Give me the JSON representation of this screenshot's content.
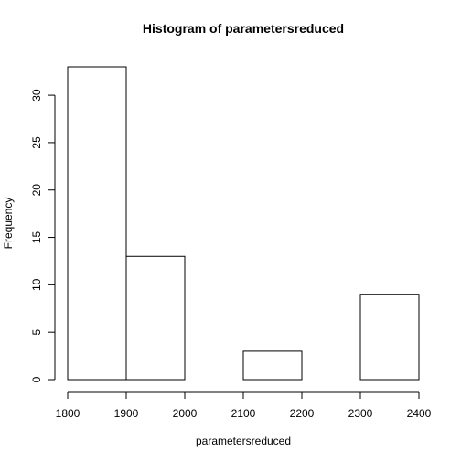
{
  "chart_data": {
    "type": "bar",
    "title": "Histogram of parametersreduced",
    "xlabel": "parametersreduced",
    "ylabel": "Frequency",
    "bins": [
      {
        "start": 1800,
        "end": 1900,
        "count": 33
      },
      {
        "start": 1900,
        "end": 2000,
        "count": 13
      },
      {
        "start": 2000,
        "end": 2100,
        "count": 0
      },
      {
        "start": 2100,
        "end": 2200,
        "count": 3
      },
      {
        "start": 2200,
        "end": 2300,
        "count": 0
      },
      {
        "start": 2300,
        "end": 2400,
        "count": 9
      }
    ],
    "xlim": [
      1800,
      2400
    ],
    "ylim": [
      0,
      33
    ],
    "xticks": [
      1800,
      1900,
      2000,
      2100,
      2200,
      2300,
      2400
    ],
    "yticks": [
      0,
      5,
      10,
      15,
      20,
      25,
      30
    ],
    "grid": false,
    "legend": "none"
  }
}
